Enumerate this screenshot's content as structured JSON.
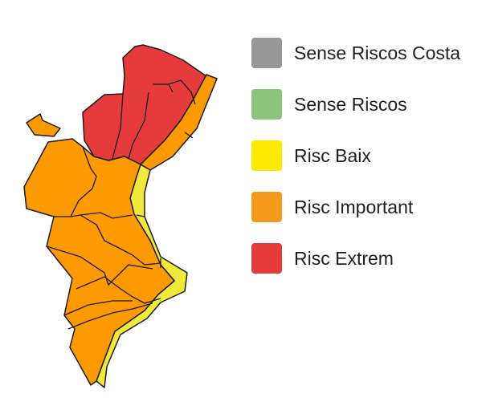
{
  "legend": {
    "items": [
      {
        "label": "Sense Riscos Costa",
        "color": "#979797"
      },
      {
        "label": "Sense Riscos",
        "color": "#8dc57f"
      },
      {
        "label": "Risc Baix",
        "color": "#fde800"
      },
      {
        "label": "Risc Important",
        "color": "#f39a1c"
      },
      {
        "label": "Risc Extrem",
        "color": "#e63b3a"
      }
    ]
  },
  "map": {
    "regions": [
      {
        "zone": "north-interior",
        "level": "Risc Extrem",
        "color": "#e53c3b"
      },
      {
        "zone": "north-coast",
        "level": "Risc Important",
        "color": "#fd9a01"
      },
      {
        "zone": "central-south-coast",
        "level": "Risc Baix",
        "color": "#f2ea3a"
      },
      {
        "zone": "interior-south",
        "level": "Risc Important",
        "color": "#fd9a01"
      },
      {
        "zone": "enclave",
        "level": "Risc Important",
        "color": "#fd9a01"
      }
    ]
  }
}
